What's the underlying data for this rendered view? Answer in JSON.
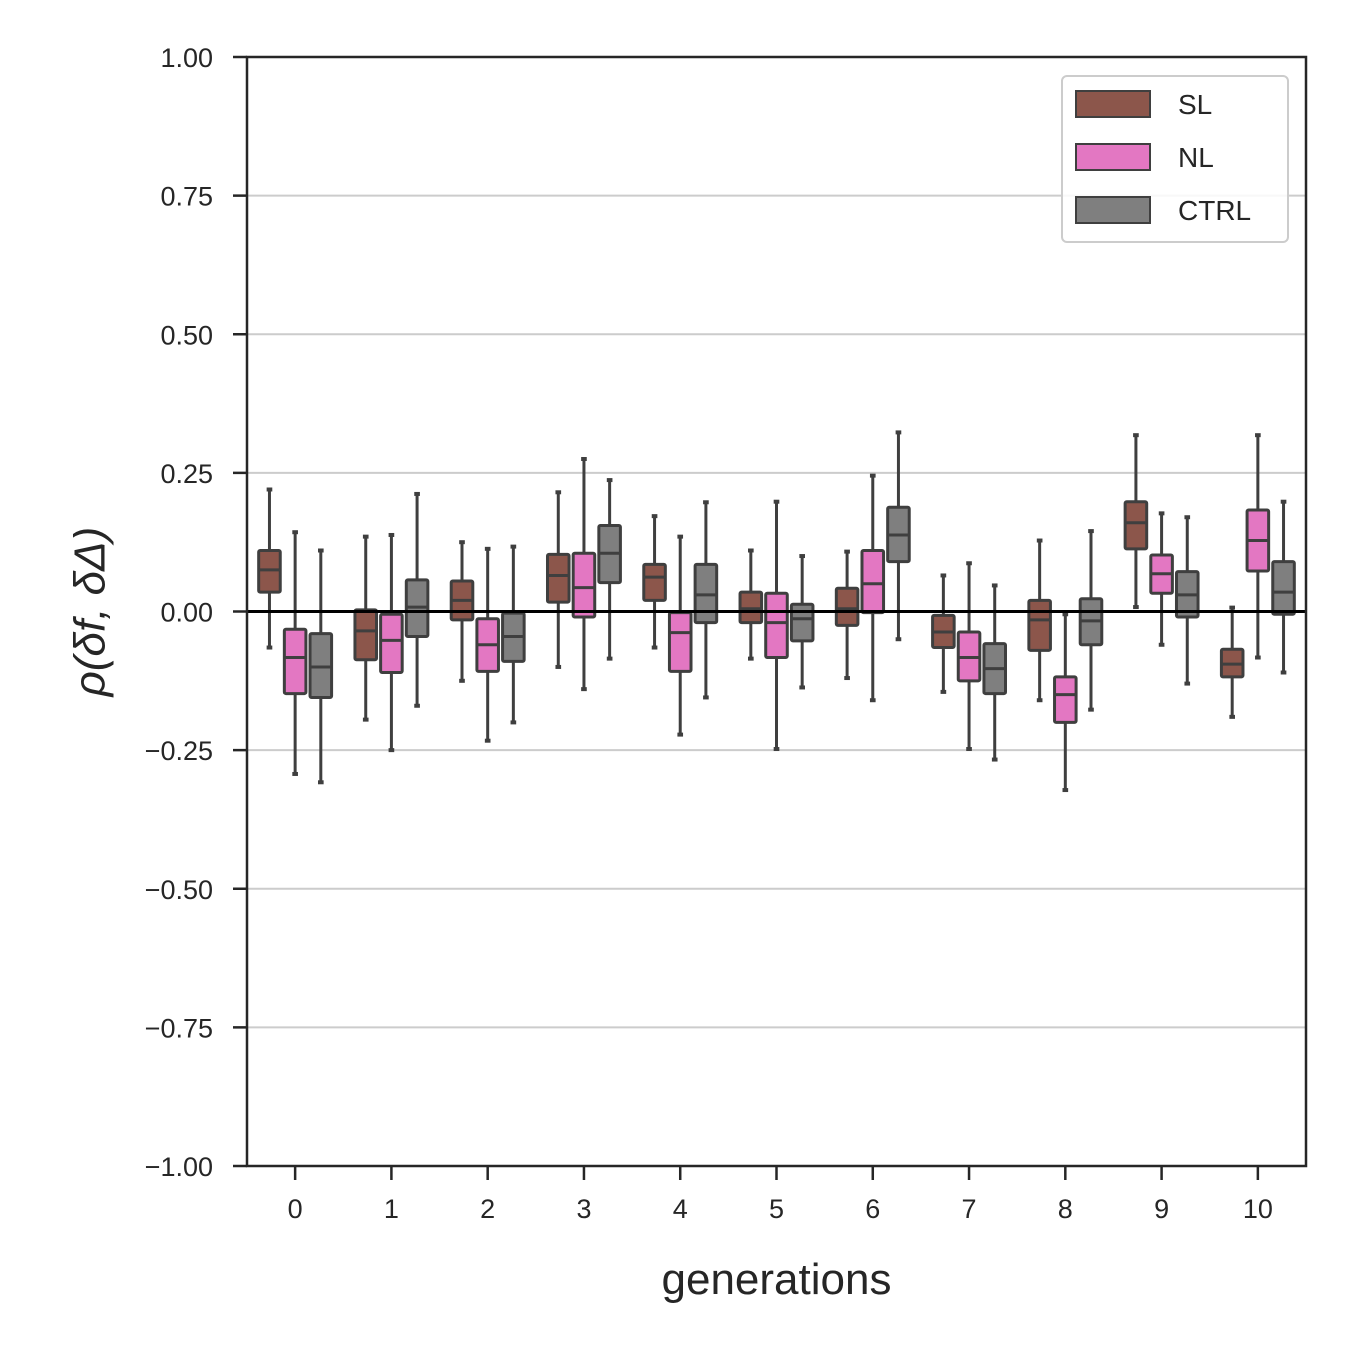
{
  "chart_data": {
    "type": "box",
    "xlabel": "generations",
    "ylabel": "ρ(δf, δΔ)",
    "categories": [
      "0",
      "1",
      "2",
      "3",
      "4",
      "5",
      "6",
      "7",
      "8",
      "9",
      "10"
    ],
    "ylim": [
      -1.0,
      1.0
    ],
    "yticks": [
      "−1.00",
      "−0.75",
      "−0.50",
      "−0.25",
      "0.00",
      "0.25",
      "0.50",
      "0.75",
      "1.00"
    ],
    "ytick_values": [
      -1.0,
      -0.75,
      -0.5,
      -0.25,
      0.0,
      0.25,
      0.5,
      0.75,
      1.0
    ],
    "grid": "horizontal",
    "reference_line": 0.0,
    "legend": {
      "placement": "top-right"
    },
    "series": [
      {
        "name": "SL",
        "color": "#8c564b",
        "boxes": [
          {
            "whislo": -0.065,
            "q1": 0.035,
            "med": 0.075,
            "q3": 0.11,
            "whishi": 0.22
          },
          {
            "whislo": -0.195,
            "q1": -0.087,
            "med": -0.035,
            "q3": 0.003,
            "whishi": 0.135
          },
          {
            "whislo": -0.125,
            "q1": -0.015,
            "med": 0.02,
            "q3": 0.055,
            "whishi": 0.125
          },
          {
            "whislo": -0.1,
            "q1": 0.017,
            "med": 0.065,
            "q3": 0.103,
            "whishi": 0.215
          },
          {
            "whislo": -0.065,
            "q1": 0.02,
            "med": 0.062,
            "q3": 0.085,
            "whishi": 0.172
          },
          {
            "whislo": -0.085,
            "q1": -0.02,
            "med": 0.005,
            "q3": 0.035,
            "whishi": 0.11
          },
          {
            "whislo": -0.12,
            "q1": -0.025,
            "med": 0.005,
            "q3": 0.042,
            "whishi": 0.108
          },
          {
            "whislo": -0.145,
            "q1": -0.065,
            "med": -0.037,
            "q3": -0.007,
            "whishi": 0.065
          },
          {
            "whislo": -0.16,
            "q1": -0.07,
            "med": -0.015,
            "q3": 0.02,
            "whishi": 0.128
          },
          {
            "whislo": 0.008,
            "q1": 0.113,
            "med": 0.16,
            "q3": 0.198,
            "whishi": 0.318
          },
          {
            "whislo": -0.19,
            "q1": -0.118,
            "med": -0.095,
            "q3": -0.068,
            "whishi": 0.007
          }
        ]
      },
      {
        "name": "NL",
        "color": "#e377c2",
        "boxes": [
          {
            "whislo": -0.293,
            "q1": -0.148,
            "med": -0.083,
            "q3": -0.032,
            "whishi": 0.143
          },
          {
            "whislo": -0.25,
            "q1": -0.11,
            "med": -0.052,
            "q3": -0.005,
            "whishi": 0.138
          },
          {
            "whislo": -0.233,
            "q1": -0.108,
            "med": -0.06,
            "q3": -0.013,
            "whishi": 0.113
          },
          {
            "whislo": -0.14,
            "q1": -0.01,
            "med": 0.043,
            "q3": 0.105,
            "whishi": 0.275
          },
          {
            "whislo": -0.222,
            "q1": -0.108,
            "med": -0.038,
            "q3": -0.002,
            "whishi": 0.135
          },
          {
            "whislo": -0.248,
            "q1": -0.083,
            "med": -0.02,
            "q3": 0.033,
            "whishi": 0.198
          },
          {
            "whislo": -0.16,
            "q1": -0.002,
            "med": 0.05,
            "q3": 0.11,
            "whishi": 0.245
          },
          {
            "whislo": -0.248,
            "q1": -0.125,
            "med": -0.083,
            "q3": -0.037,
            "whishi": 0.087
          },
          {
            "whislo": -0.322,
            "q1": -0.2,
            "med": -0.15,
            "q3": -0.118,
            "whishi": -0.005
          },
          {
            "whislo": -0.06,
            "q1": 0.033,
            "med": 0.068,
            "q3": 0.102,
            "whishi": 0.177
          },
          {
            "whislo": -0.083,
            "q1": 0.073,
            "med": 0.128,
            "q3": 0.183,
            "whishi": 0.318
          }
        ]
      },
      {
        "name": "CTRL",
        "color": "#7f7f7f",
        "boxes": [
          {
            "whislo": -0.308,
            "q1": -0.155,
            "med": -0.1,
            "q3": -0.04,
            "whishi": 0.11
          },
          {
            "whislo": -0.17,
            "q1": -0.045,
            "med": 0.008,
            "q3": 0.057,
            "whishi": 0.212
          },
          {
            "whislo": -0.2,
            "q1": -0.09,
            "med": -0.045,
            "q3": -0.003,
            "whishi": 0.117
          },
          {
            "whislo": -0.085,
            "q1": 0.052,
            "med": 0.105,
            "q3": 0.155,
            "whishi": 0.237
          },
          {
            "whislo": -0.155,
            "q1": -0.02,
            "med": 0.03,
            "q3": 0.085,
            "whishi": 0.197
          },
          {
            "whislo": -0.137,
            "q1": -0.053,
            "med": -0.013,
            "q3": 0.013,
            "whishi": 0.1
          },
          {
            "whislo": -0.05,
            "q1": 0.09,
            "med": 0.138,
            "q3": 0.188,
            "whishi": 0.323
          },
          {
            "whislo": -0.267,
            "q1": -0.148,
            "med": -0.103,
            "q3": -0.058,
            "whishi": 0.047
          },
          {
            "whislo": -0.177,
            "q1": -0.06,
            "med": -0.017,
            "q3": 0.023,
            "whishi": 0.145
          },
          {
            "whislo": -0.13,
            "q1": -0.01,
            "med": 0.03,
            "q3": 0.072,
            "whishi": 0.17
          },
          {
            "whislo": -0.11,
            "q1": -0.005,
            "med": 0.035,
            "q3": 0.09,
            "whishi": 0.198
          }
        ]
      }
    ]
  }
}
